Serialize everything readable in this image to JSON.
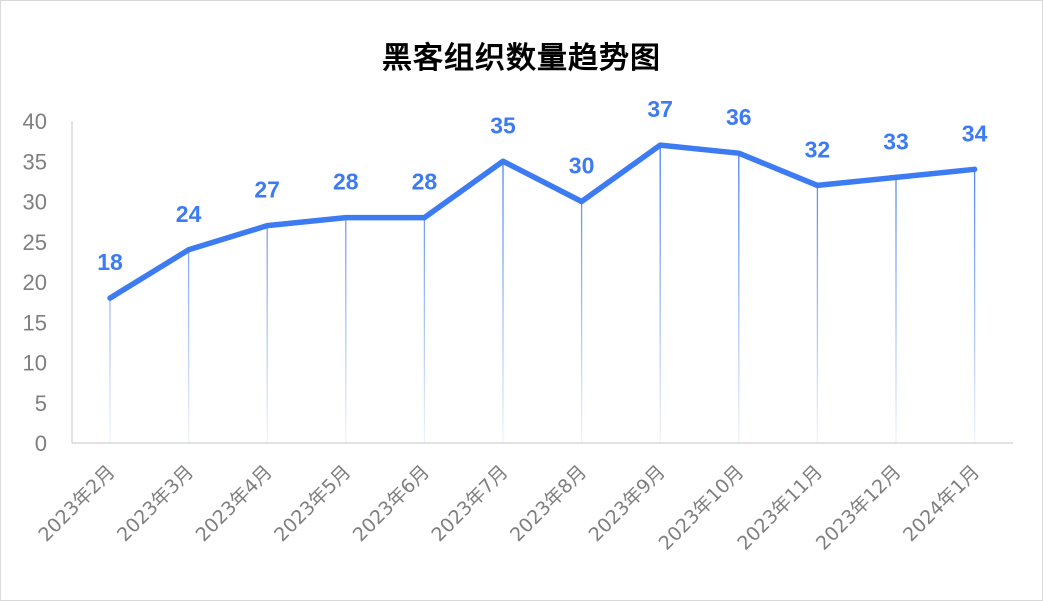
{
  "chart_data": {
    "type": "line",
    "title": "黑客组织数量趋势图",
    "categories": [
      "2023年2月",
      "2023年3月",
      "2023年4月",
      "2023年5月",
      "2023年6月",
      "2023年7月",
      "2023年8月",
      "2023年9月",
      "2023年10月",
      "2023年11月",
      "2023年12月",
      "2024年1月"
    ],
    "values": [
      18,
      24,
      27,
      28,
      28,
      35,
      30,
      37,
      36,
      32,
      33,
      34
    ],
    "ylim": [
      0,
      40
    ],
    "yticks": [
      0,
      5,
      10,
      15,
      20,
      25,
      30,
      35,
      40
    ],
    "xlabel": "",
    "ylabel": "",
    "data_labels": true,
    "drop_lines": true,
    "grid": false,
    "legend": "none",
    "colors": {
      "line": "#3d7bf2",
      "data_label": "#3d7bf2",
      "drop_line": "#4a80e8",
      "axis": "#d9d9d9",
      "tick_text": "#7f7f7f",
      "title": "#000000"
    }
  }
}
